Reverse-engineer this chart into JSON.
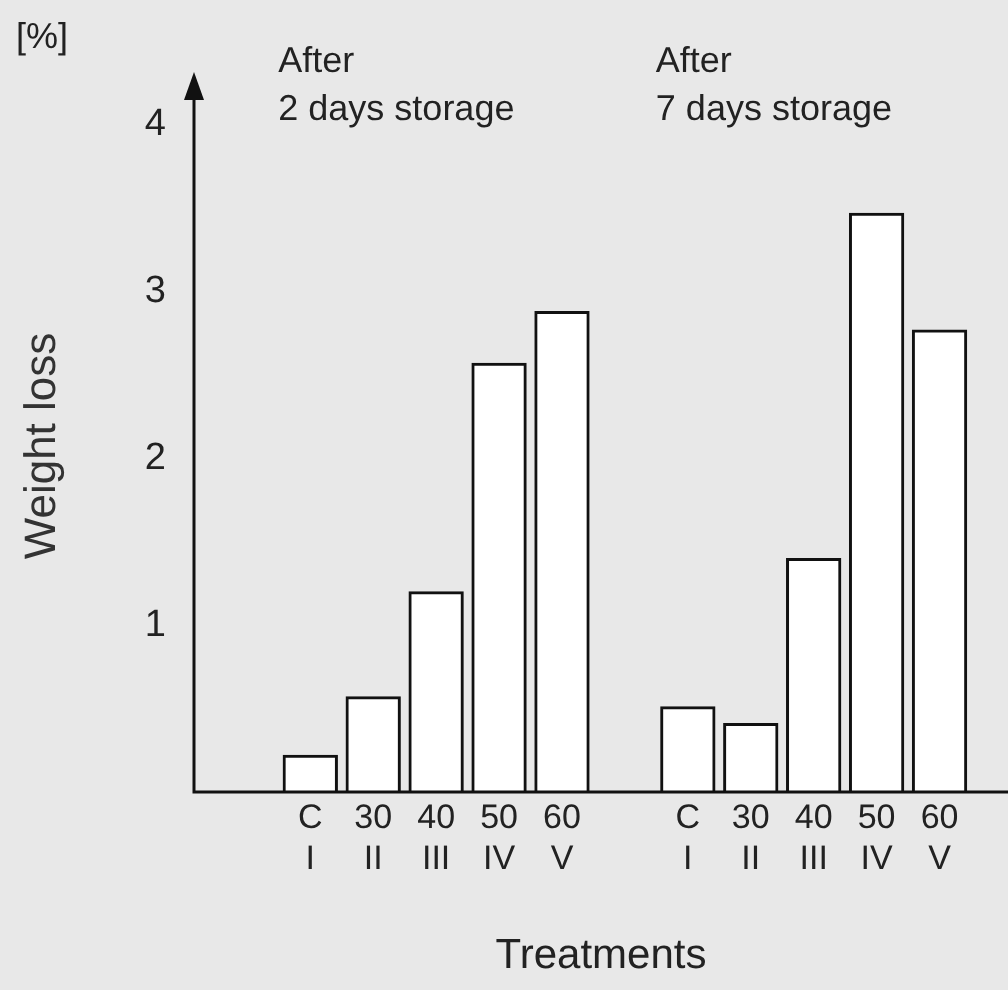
{
  "chart_data": {
    "type": "bar",
    "xlabel": "Treatments",
    "ylabel": "Weight loss",
    "categories": [
      "C\nI",
      "30\nII",
      "40\nIII",
      "50\nIV",
      "60\nV",
      null,
      "C\nI",
      "30\nII",
      "40\nIII",
      "50\nIV",
      "60\nV"
    ],
    "values": [
      0.22,
      0.57,
      1.2,
      2.57,
      2.88,
      null,
      0.51,
      0.41,
      1.4,
      3.47,
      2.77
    ],
    "color": "#ffffff",
    "ylim": [
      0,
      4.15
    ],
    "yticks": [
      1,
      2,
      3,
      4
    ],
    "grid": false,
    "annotations": [
      "[%]",
      "After\n2 days storage",
      "After\n7 days storage"
    ]
  }
}
